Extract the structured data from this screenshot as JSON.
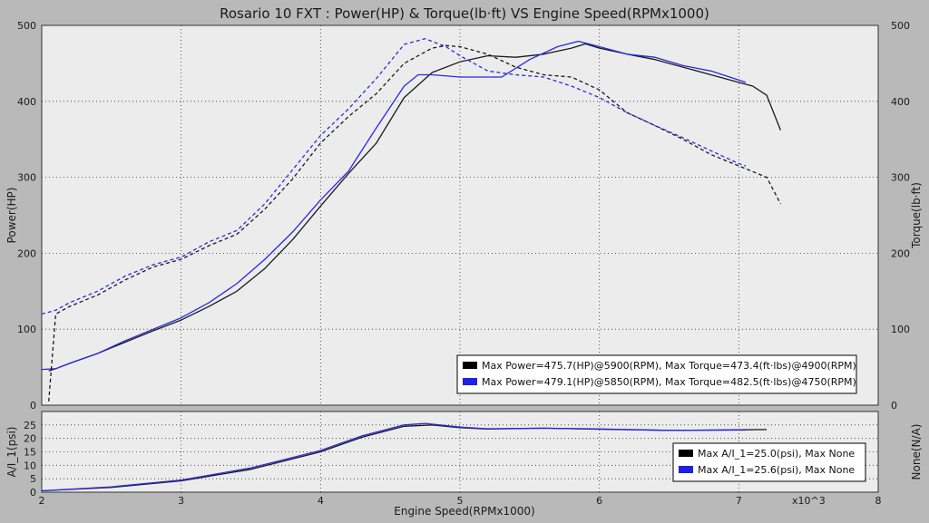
{
  "chart_data": [
    {
      "type": "line",
      "title": "Rosario 10 FXT : Power(HP) & Torque(lb·ft) VS Engine Speed(RPMx1000)",
      "xlabel": "Engine Speed(RPMx1000)",
      "ylabel": "Power(HP)",
      "ylabel_right": "Torque(lb·ft)",
      "xlim": [
        2,
        8
      ],
      "ylim": [
        0,
        500
      ],
      "ylim_right": [
        0,
        500
      ],
      "x_ticks": [
        "2",
        "3",
        "4",
        "5",
        "6",
        "7",
        "8"
      ],
      "y_ticks": [
        "0",
        "100",
        "200",
        "300",
        "400",
        "500"
      ],
      "y_ticks_right": [
        "0",
        "100",
        "200",
        "300",
        "400",
        "500"
      ],
      "x_multiplier_label": "x10^3",
      "grid": true,
      "legend_position": "bottom-right",
      "legend": [
        {
          "color": "#000000",
          "text": "Max Power=475.7(HP)@5900(RPM), Max Torque=473.4(ft·lbs)@4900(RPM)"
        },
        {
          "color": "#2020e0",
          "text": "Max Power=479.1(HP)@5850(RPM), Max Torque=482.5(ft·lbs)@4750(RPM)"
        }
      ],
      "series": [
        {
          "color": "#1a1a1a",
          "dash": false,
          "axis": "left",
          "x": [
            2.05,
            2.1,
            2.2,
            2.4,
            2.6,
            2.8,
            3.0,
            3.2,
            3.4,
            3.6,
            3.8,
            4.0,
            4.2,
            4.4,
            4.6,
            4.8,
            5.0,
            5.2,
            5.4,
            5.6,
            5.8,
            5.9,
            6.0,
            6.2,
            6.4,
            6.6,
            6.8,
            7.0,
            7.1,
            7.2,
            7.3
          ],
          "y": [
            45,
            48,
            55,
            68,
            83,
            98,
            112,
            130,
            150,
            180,
            218,
            262,
            305,
            345,
            405,
            438,
            452,
            460,
            458,
            462,
            470,
            475.7,
            470,
            462,
            455,
            445,
            435,
            425,
            420,
            408,
            362
          ]
        },
        {
          "color": "#2a2ae0",
          "dash": false,
          "axis": "left",
          "x": [
            2.0,
            2.1,
            2.2,
            2.4,
            2.6,
            2.8,
            3.0,
            3.2,
            3.4,
            3.6,
            3.8,
            4.0,
            4.2,
            4.4,
            4.6,
            4.7,
            4.8,
            5.0,
            5.2,
            5.3,
            5.5,
            5.7,
            5.85,
            6.0,
            6.2,
            6.4,
            6.6,
            6.8,
            7.0,
            7.05
          ],
          "y": [
            47,
            48,
            55,
            68,
            85,
            100,
            115,
            135,
            160,
            192,
            228,
            270,
            308,
            365,
            420,
            435,
            435,
            432,
            432,
            432,
            455,
            472,
            479.1,
            472,
            462,
            458,
            447,
            440,
            428,
            425
          ]
        },
        {
          "color": "#1a1a1a",
          "dash": true,
          "axis": "right",
          "x": [
            2.05,
            2.1,
            2.2,
            2.4,
            2.6,
            2.8,
            3.0,
            3.2,
            3.4,
            3.6,
            3.8,
            4.0,
            4.2,
            4.4,
            4.6,
            4.8,
            4.9,
            5.0,
            5.2,
            5.4,
            5.6,
            5.8,
            6.0,
            6.2,
            6.4,
            6.6,
            6.8,
            7.0,
            7.2,
            7.3
          ],
          "y": [
            5,
            120,
            130,
            145,
            165,
            182,
            192,
            210,
            225,
            258,
            298,
            345,
            380,
            410,
            450,
            470,
            473.4,
            472,
            462,
            445,
            435,
            432,
            415,
            385,
            368,
            350,
            330,
            315,
            300,
            265
          ]
        },
        {
          "color": "#2a2ae0",
          "dash": true,
          "axis": "right",
          "x": [
            2.0,
            2.1,
            2.2,
            2.4,
            2.6,
            2.8,
            3.0,
            3.2,
            3.4,
            3.6,
            3.8,
            4.0,
            4.2,
            4.4,
            4.6,
            4.75,
            4.9,
            5.0,
            5.2,
            5.4,
            5.6,
            5.8,
            6.0,
            6.2,
            6.4,
            6.6,
            6.8,
            7.0,
            7.05
          ],
          "y": [
            120,
            125,
            135,
            150,
            170,
            185,
            195,
            215,
            230,
            265,
            310,
            355,
            390,
            430,
            475,
            482.5,
            472,
            460,
            440,
            435,
            432,
            420,
            405,
            385,
            368,
            352,
            335,
            318,
            315
          ]
        }
      ]
    },
    {
      "type": "line",
      "xlabel": "",
      "ylabel": "A/I_1(psi)",
      "ylabel_right": "None(N/A)",
      "xlim": [
        2,
        8
      ],
      "ylim": [
        0,
        30
      ],
      "x_ticks": [
        "2",
        "3",
        "4",
        "5",
        "6",
        "7",
        "8"
      ],
      "y_ticks": [
        "0",
        "5",
        "10",
        "15",
        "20",
        "25"
      ],
      "grid": true,
      "legend_position": "bottom-right",
      "legend": [
        {
          "color": "#000000",
          "text": "Max A/I_1=25.0(psi), Max None"
        },
        {
          "color": "#2020e0",
          "text": "Max A/I_1=25.6(psi), Max None"
        }
      ],
      "series": [
        {
          "color": "#1a1a1a",
          "dash": false,
          "x": [
            2.0,
            2.5,
            3.0,
            3.5,
            4.0,
            4.3,
            4.6,
            4.8,
            5.0,
            5.2,
            5.6,
            6.0,
            6.5,
            7.0,
            7.2
          ],
          "y": [
            0.5,
            1.8,
            4.2,
            8.5,
            15.0,
            20.5,
            24.5,
            25.0,
            24.0,
            23.5,
            23.8,
            23.5,
            23.0,
            23.2,
            23.3
          ]
        },
        {
          "color": "#2a2ae0",
          "dash": false,
          "x": [
            2.0,
            2.5,
            3.0,
            3.5,
            4.0,
            4.3,
            4.6,
            4.75,
            5.0,
            5.2,
            5.6,
            6.0,
            6.5,
            7.0,
            7.05
          ],
          "y": [
            0.5,
            2.0,
            4.5,
            9.0,
            15.5,
            21.0,
            25.0,
            25.6,
            24.2,
            23.6,
            23.8,
            23.4,
            23.0,
            23.1,
            23.1
          ]
        }
      ]
    }
  ]
}
